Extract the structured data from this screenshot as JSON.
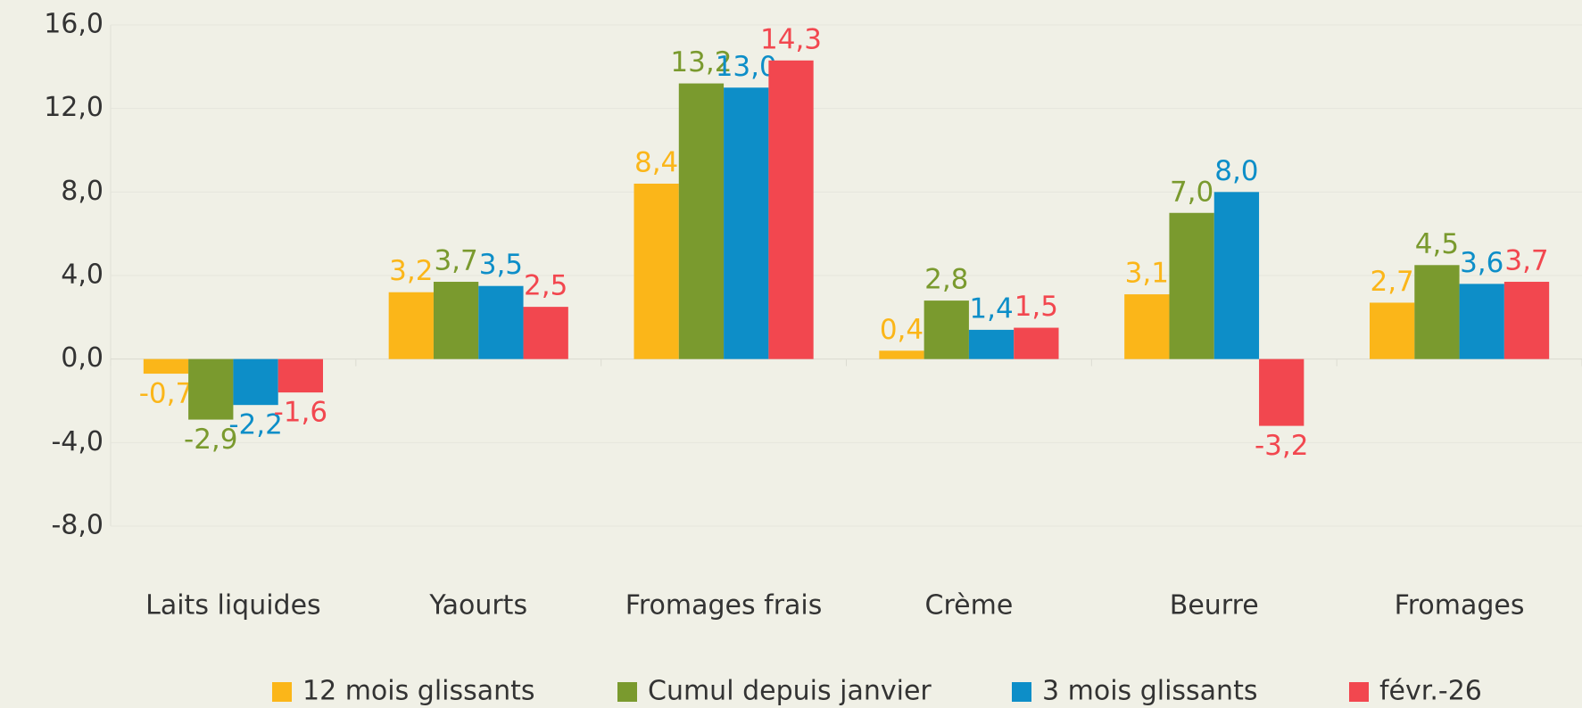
{
  "chart_data": {
    "type": "bar",
    "categories": [
      "Laits liquides",
      "Yaourts",
      "Fromages frais",
      "Crème",
      "Beurre",
      "Fromages"
    ],
    "series": [
      {
        "name": "12 mois glissants",
        "color": "#fbb619",
        "values": [
          -0.7,
          3.2,
          8.4,
          0.4,
          3.1,
          2.7
        ],
        "value_labels": [
          "-0,7",
          "3,2",
          "8,4",
          "0,4",
          "3,1",
          "2,7"
        ]
      },
      {
        "name": "Cumul depuis janvier",
        "color": "#7a9a2e",
        "values": [
          -2.9,
          3.7,
          13.2,
          2.8,
          7.0,
          4.5
        ],
        "value_labels": [
          "-2,9",
          "3,7",
          "13,2",
          "2,8",
          "7,0",
          "4,5"
        ]
      },
      {
        "name": "3 mois glissants",
        "color": "#0d8ec8",
        "values": [
          -2.2,
          3.5,
          13.0,
          1.4,
          8.0,
          3.6
        ],
        "value_labels": [
          "-2,2",
          "3,5",
          "13,0",
          "1,4",
          "8,0",
          "3,6"
        ]
      },
      {
        "name": "févr.-26",
        "color": "#f2474f",
        "values": [
          -1.6,
          2.5,
          14.3,
          1.5,
          -3.2,
          3.7
        ],
        "value_labels": [
          "-1,6",
          "2,5",
          "14,3",
          "1,5",
          "-3,2",
          "3,7"
        ]
      }
    ],
    "ylim": [
      -8,
      16
    ],
    "yticks": [
      {
        "value": -8,
        "label": "-8,0"
      },
      {
        "value": -4,
        "label": "-4,0"
      },
      {
        "value": 0,
        "label": "0,0"
      },
      {
        "value": 4,
        "label": "4,0"
      },
      {
        "value": 8,
        "label": "8,0"
      },
      {
        "value": 12,
        "label": "12,0"
      },
      {
        "value": 16,
        "label": "16,0"
      }
    ],
    "grid": true,
    "legend": "bottom"
  }
}
